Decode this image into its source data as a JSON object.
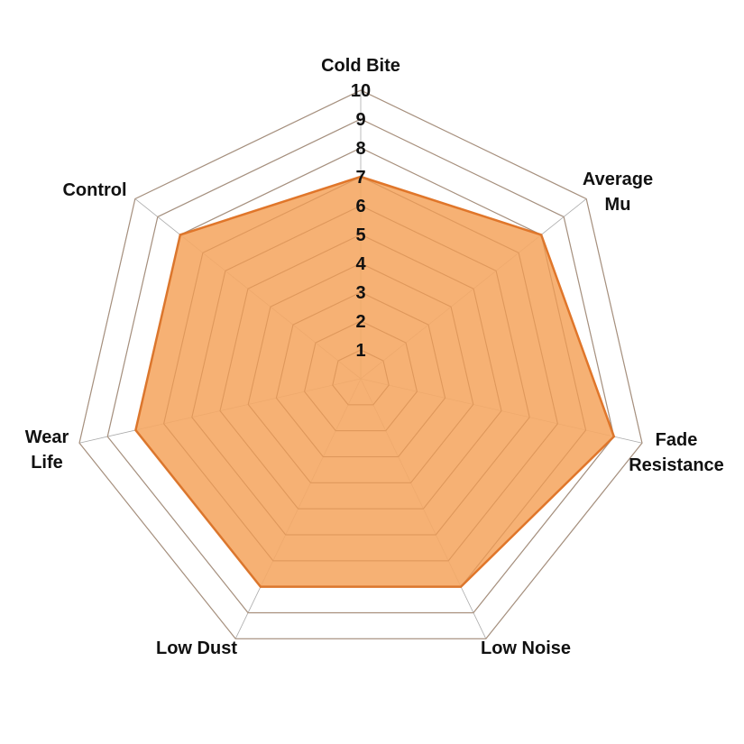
{
  "chart_data": {
    "type": "radar",
    "categories": [
      "Cold Bite",
      "Average\nMu",
      "Fade\nResistance",
      "Low Noise",
      "Low Dust",
      "Wear\nLife",
      "Control"
    ],
    "values": [
      7,
      8,
      9,
      8,
      8,
      8,
      8
    ],
    "color": "#f5a865",
    "line_color": "#e0762a",
    "rlim": [
      0,
      10
    ],
    "rticks": [
      1,
      2,
      3,
      4,
      5,
      6,
      7,
      8,
      9,
      10
    ],
    "grid": true
  }
}
